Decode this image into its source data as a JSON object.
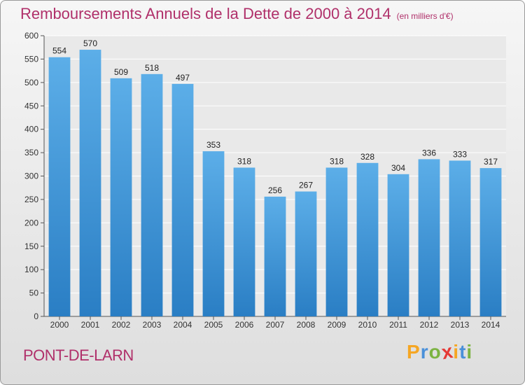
{
  "title": "Remboursements Annuels de la Dette de 2000 à 2014",
  "unit_note": "(en milliers d'€)",
  "city": "PONT-DE-LARN",
  "logo": {
    "letters": [
      "P",
      "r",
      "o",
      "x",
      "i",
      "t",
      "i"
    ],
    "colors": [
      "#f5a623",
      "#4a90d9",
      "#7cb342",
      "#e53935",
      "#f5a623",
      "#4a90d9",
      "#7cb342"
    ]
  },
  "colors": {
    "bar_top": "#5caee8",
    "bar_bottom": "#2a7ec4",
    "title": "#b0306a"
  },
  "chart_data": {
    "type": "bar",
    "categories": [
      "2000",
      "2001",
      "2002",
      "2003",
      "2004",
      "2005",
      "2006",
      "2007",
      "2008",
      "2009",
      "2010",
      "2011",
      "2012",
      "2013",
      "2014"
    ],
    "values": [
      554,
      570,
      509,
      518,
      497,
      353,
      318,
      256,
      267,
      318,
      328,
      304,
      336,
      333,
      317
    ],
    "ylim": [
      0,
      600
    ],
    "yticks": [
      0,
      50,
      100,
      150,
      200,
      250,
      300,
      350,
      400,
      450,
      500,
      550,
      600
    ],
    "grid": true
  }
}
